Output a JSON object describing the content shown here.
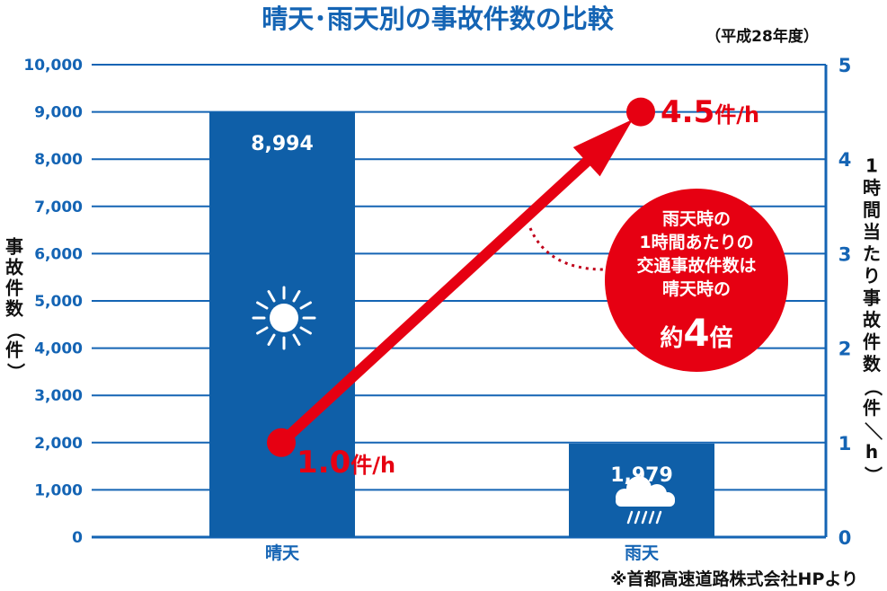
{
  "chart_data": {
    "type": "bar",
    "title": "晴天･雨天別の事故件数の比較",
    "subtitle": "（平成28年度）",
    "categories": [
      "晴天",
      "雨天"
    ],
    "bar_values": [
      8994,
      1979
    ],
    "bar_value_labels": [
      "8,994",
      "1,979"
    ],
    "bar_icons": [
      "sun-icon",
      "rain-cloud-icon"
    ],
    "left_axis": {
      "label": "事故件数（件）",
      "ylim": [
        0,
        10000
      ],
      "ticks": [
        "0",
        "1,000",
        "2,000",
        "3,000",
        "4,000",
        "5,000",
        "6,000",
        "7,000",
        "8,000",
        "9,000",
        "10,000"
      ]
    },
    "right_axis": {
      "label": "1時間当たり事故件数（件／h）",
      "ylim": [
        0,
        5
      ],
      "ticks": [
        "0",
        "1",
        "2",
        "3",
        "4",
        "5"
      ]
    },
    "line_series": {
      "values": [
        1.0,
        4.5
      ],
      "labels": [
        {
          "num": "1.0",
          "unit": "件/h"
        },
        {
          "num": "4.5",
          "unit": "件/h"
        }
      ]
    },
    "annotation": {
      "lines": [
        "雨天時の",
        "1時間あたりの",
        "交通事故件数は",
        "晴天時の"
      ],
      "emphasis_pre": "約",
      "emphasis_num": "4",
      "emphasis_post": "倍"
    },
    "source": "※首都高速道路株式会社HPより",
    "grid": true,
    "colors": {
      "bar": "#0f5fa8",
      "axis": "#1464b4",
      "line": "#e60012"
    }
  }
}
